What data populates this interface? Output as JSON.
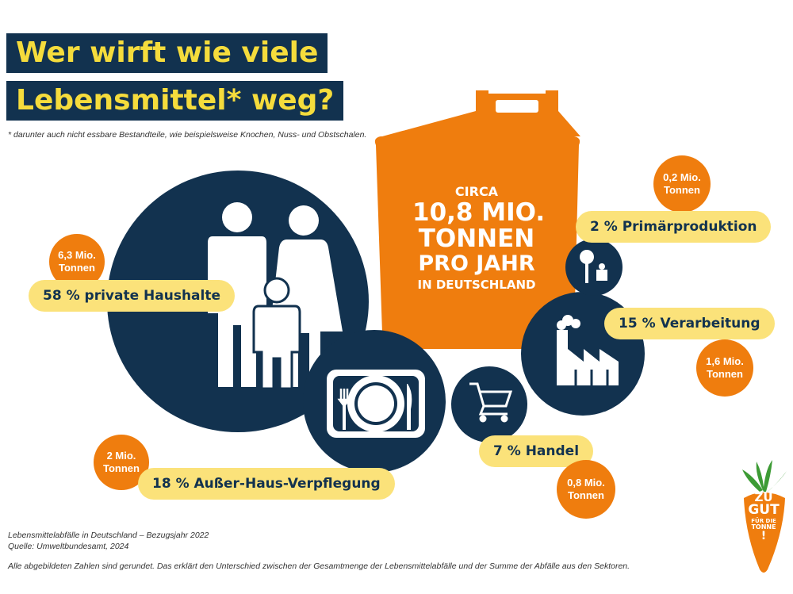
{
  "title": {
    "line1": "Wer wirft wie viele",
    "line2": "Lebensmittel* weg?"
  },
  "footnote": "* darunter auch nicht essbare Bestandteile, wie beispielsweise Knochen, Nuss- und Obstschalen.",
  "total": {
    "circa": "CIRCA",
    "line1": "10,8 MIO.",
    "line2": "TONNEN",
    "line3": "PRO JAHR",
    "line4": "IN DEUTSCHLAND"
  },
  "sectors": {
    "households": {
      "label": "58 % private Haushalte",
      "amount_line1": "6,3 Mio.",
      "amount_line2": "Tonnen",
      "icon": "family-icon"
    },
    "outofhome": {
      "label": "18 % Außer-Haus-Verpflegung",
      "amount_line1": "2 Mio.",
      "amount_line2": "Tonnen",
      "icon": "plate-cutlery-icon"
    },
    "retail": {
      "label": "7 % Handel",
      "amount_line1": "0,8 Mio.",
      "amount_line2": "Tonnen",
      "icon": "shopping-cart-icon"
    },
    "processing": {
      "label": "15 % Verarbeitung",
      "amount_line1": "1,6 Mio.",
      "amount_line2": "Tonnen",
      "icon": "factory-icon"
    },
    "primary": {
      "label": "2 % Primärproduktion",
      "amount_line1": "0,2 Mio.",
      "amount_line2": "Tonnen",
      "icon": "farm-icon"
    }
  },
  "shares_percent": {
    "households": 58,
    "outofhome": 18,
    "retail": 7,
    "processing": 15,
    "primary": 2
  },
  "amounts_mio_tonnen": {
    "households": 6.3,
    "outofhome": 2,
    "retail": 0.8,
    "processing": 1.6,
    "primary": 0.2
  },
  "source": {
    "line1": "Lebensmittelabfälle in Deutschland – Bezugsjahr 2022",
    "line2": "Quelle: Umweltbundesamt, 2024"
  },
  "disclaimer": "Alle abgebildeten Zahlen sind gerundet. Das erklärt den Unterschied zwischen der Gesamtmenge der Lebensmittelabfälle und der Summe der Abfälle aus den Sektoren.",
  "logo": {
    "line1": "ZU",
    "line2": "GUT",
    "line3": "FÜR DIE",
    "line4": "TONNE",
    "line5": "!"
  },
  "colors": {
    "navy": "#12324f",
    "yellow": "#f5dc3c",
    "pill": "#fbe27a",
    "orange": "#ef7d0e",
    "carrot_leaves": "#3d9b35"
  }
}
